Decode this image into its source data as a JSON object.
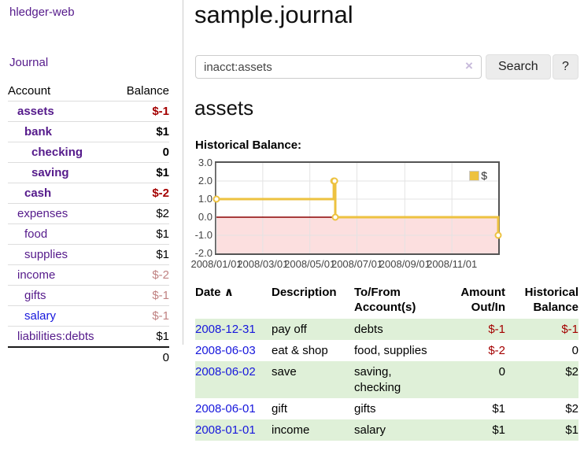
{
  "app": {
    "brand": "hledger-web"
  },
  "sidebar": {
    "journal_label": "Journal",
    "accounts_table": {
      "headers": [
        "Account",
        "Balance"
      ],
      "rows": [
        {
          "name": "assets",
          "depth": 1,
          "matched": true,
          "balance": "$-1",
          "balance_style": "neg"
        },
        {
          "name": "bank",
          "depth": 2,
          "matched": true,
          "balance": "$1",
          "balance_style": ""
        },
        {
          "name": "checking",
          "depth": 3,
          "matched": true,
          "balance": "0",
          "balance_style": ""
        },
        {
          "name": "saving",
          "depth": 3,
          "matched": true,
          "balance": "$1",
          "balance_style": ""
        },
        {
          "name": "cash",
          "depth": 2,
          "matched": true,
          "balance": "$-2",
          "balance_style": "neg"
        },
        {
          "name": "expenses",
          "depth": 1,
          "matched": false,
          "balance": "$2",
          "balance_style": ""
        },
        {
          "name": "food",
          "depth": 2,
          "matched": false,
          "balance": "$1",
          "balance_style": ""
        },
        {
          "name": "supplies",
          "depth": 2,
          "matched": false,
          "balance": "$1",
          "balance_style": ""
        },
        {
          "name": "income",
          "depth": 1,
          "matched": false,
          "balance": "$-2",
          "balance_style": "soft-neg"
        },
        {
          "name": "gifts",
          "depth": 2,
          "matched": false,
          "balance": "$-1",
          "balance_style": "soft-neg"
        },
        {
          "name": "salary",
          "depth": 2,
          "matched": false,
          "unvisited": true,
          "balance": "$-1",
          "balance_style": "soft-neg"
        },
        {
          "name": "liabilities:debts",
          "depth": 1,
          "matched": false,
          "balance": "$1",
          "balance_style": ""
        }
      ],
      "total": "0"
    }
  },
  "main": {
    "title": "sample.journal",
    "search": {
      "value": "inacct:assets",
      "clear_icon": "×",
      "button_label": "Search",
      "help_label": "?"
    },
    "account_heading": "assets",
    "transactions": {
      "headers": {
        "date": "Date",
        "description": "Description",
        "accounts": "To/From\nAccount(s)",
        "amount": "Amount\nOut/In",
        "balance": "Historical\nBalance"
      },
      "sort_icon": "∧",
      "rows": [
        {
          "date": "2008-12-31",
          "description": "pay off",
          "accounts": "debts",
          "amount": "$-1",
          "amount_negative": true,
          "balance": "$-1",
          "balance_negative": true,
          "highlight": true
        },
        {
          "date": "2008-06-03",
          "description": "eat & shop",
          "accounts": "food, supplies",
          "amount": "$-2",
          "amount_negative": true,
          "balance": "0",
          "balance_negative": false,
          "highlight": false
        },
        {
          "date": "2008-06-02",
          "description": "save",
          "accounts": "saving,\nchecking",
          "amount": "0",
          "amount_negative": false,
          "balance": "$2",
          "balance_negative": false,
          "highlight": true
        },
        {
          "date": "2008-06-01",
          "description": "gift",
          "accounts": "gifts",
          "amount": "$1",
          "amount_negative": false,
          "balance": "$2",
          "balance_negative": false,
          "highlight": false
        },
        {
          "date": "2008-01-01",
          "description": "income",
          "accounts": "salary",
          "amount": "$1",
          "amount_negative": false,
          "balance": "$1",
          "balance_negative": false,
          "highlight": true
        }
      ]
    }
  },
  "chart_data": {
    "type": "line",
    "title": "Historical Balance:",
    "x_type": "date",
    "x_range": [
      "2008-01-01",
      "2008-12-31"
    ],
    "ylim": [
      -2,
      3
    ],
    "y_ticks": [
      {
        "value": 3,
        "label": "3.0"
      },
      {
        "value": 2,
        "label": "2.0"
      },
      {
        "value": 1,
        "label": "1.0"
      },
      {
        "value": 0,
        "label": "0.0"
      },
      {
        "value": -1,
        "label": "-1.0"
      },
      {
        "value": -2,
        "label": "-2.0"
      }
    ],
    "x_ticks": [
      {
        "value": "2008-01-01",
        "label": "2008/01/01"
      },
      {
        "value": "2008-03-01",
        "label": "2008/03/01"
      },
      {
        "value": "2008-05-01",
        "label": "2008/05/01"
      },
      {
        "value": "2008-07-01",
        "label": "2008/07/01"
      },
      {
        "value": "2008-09-01",
        "label": "2008/09/01"
      },
      {
        "value": "2008-11-01",
        "label": "2008/11/01"
      }
    ],
    "series": [
      {
        "name": "$",
        "color": "#edc240",
        "line_style": "step",
        "marker": "open-circle",
        "points": [
          [
            "2008-01-01",
            1.0
          ],
          [
            "2008-06-01",
            2.0
          ],
          [
            "2008-06-02",
            2.0
          ],
          [
            "2008-06-03",
            0.0
          ],
          [
            "2008-12-31",
            -1.0
          ]
        ]
      }
    ],
    "grid": {
      "show": true,
      "color": "#e3e3e3",
      "border_color": "#545454"
    },
    "zero_line_color": "#8b0000",
    "negative_region_fill": "#fcdfdf",
    "legend": {
      "position": "top-right",
      "entries": [
        {
          "label": "$",
          "color": "#edc240"
        }
      ]
    }
  }
}
